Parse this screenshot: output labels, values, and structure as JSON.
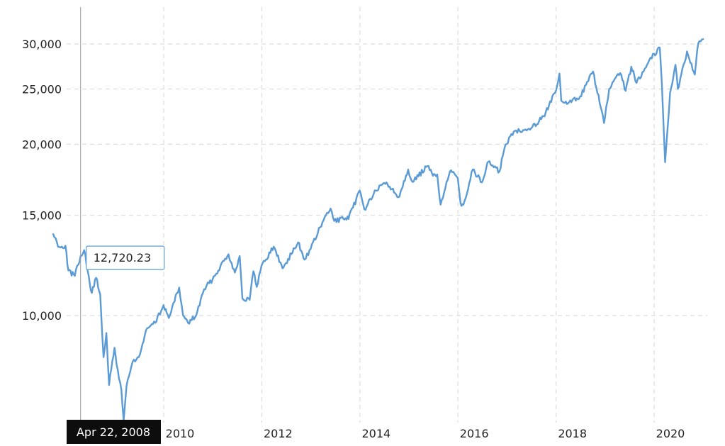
{
  "chart_data": {
    "type": "line",
    "title": "",
    "xlabel": "",
    "ylabel": "",
    "y_scale": "log",
    "ylim": [
      6500,
      32000
    ],
    "xlim": [
      "2007-10-01",
      "2020-12-31"
    ],
    "grid": true,
    "line_color": "#5b9bd5",
    "y_ticks": [
      {
        "value": 10000,
        "label": "10,000"
      },
      {
        "value": 15000,
        "label": "15,000"
      },
      {
        "value": 20000,
        "label": "20,000"
      },
      {
        "value": 25000,
        "label": "25,000"
      },
      {
        "value": 30000,
        "label": "30,000"
      }
    ],
    "x_ticks": [
      {
        "value": "2010-01-01",
        "label": "2010"
      },
      {
        "value": "2012-01-01",
        "label": "2012"
      },
      {
        "value": "2014-01-01",
        "label": "2014"
      },
      {
        "value": "2016-01-01",
        "label": "2016"
      },
      {
        "value": "2018-01-01",
        "label": "2018"
      },
      {
        "value": "2020-01-01",
        "label": "2020"
      }
    ],
    "series": [
      {
        "points": [
          [
            "2007-10-01",
            13900
          ],
          [
            "2007-11-15",
            13200
          ],
          [
            "2007-12-31",
            13260
          ],
          [
            "2008-01-22",
            12000
          ],
          [
            "2008-03-10",
            11740
          ],
          [
            "2008-04-22",
            12720
          ],
          [
            "2008-05-19",
            13030
          ],
          [
            "2008-06-30",
            11350
          ],
          [
            "2008-07-15",
            10960
          ],
          [
            "2008-08-15",
            11650
          ],
          [
            "2008-09-15",
            10900
          ],
          [
            "2008-10-10",
            8450
          ],
          [
            "2008-10-31",
            9320
          ],
          [
            "2008-11-20",
            7550
          ],
          [
            "2008-12-31",
            8780
          ],
          [
            "2009-01-15",
            8200
          ],
          [
            "2009-02-20",
            7400
          ],
          [
            "2009-03-09",
            6550
          ],
          [
            "2009-03-30",
            7520
          ],
          [
            "2009-05-15",
            8300
          ],
          [
            "2009-06-30",
            8450
          ],
          [
            "2009-08-31",
            9500
          ],
          [
            "2009-10-30",
            9710
          ],
          [
            "2009-12-31",
            10430
          ],
          [
            "2010-02-08",
            9900
          ],
          [
            "2010-04-26",
            11200
          ],
          [
            "2010-05-25",
            10000
          ],
          [
            "2010-07-02",
            9700
          ],
          [
            "2010-08-31",
            10010
          ],
          [
            "2010-10-29",
            11120
          ],
          [
            "2010-12-31",
            11580
          ],
          [
            "2011-02-28",
            12230
          ],
          [
            "2011-04-29",
            12810
          ],
          [
            "2011-06-15",
            11900
          ],
          [
            "2011-07-21",
            12720
          ],
          [
            "2011-08-10",
            10720
          ],
          [
            "2011-10-03",
            10660
          ],
          [
            "2011-10-31",
            11960
          ],
          [
            "2011-11-25",
            11230
          ],
          [
            "2011-12-30",
            12220
          ],
          [
            "2012-03-30",
            13210
          ],
          [
            "2012-06-04",
            12100
          ],
          [
            "2012-09-28",
            13440
          ],
          [
            "2012-11-15",
            12540
          ],
          [
            "2012-12-31",
            13100
          ],
          [
            "2013-03-28",
            14580
          ],
          [
            "2013-05-28",
            15410
          ],
          [
            "2013-06-24",
            14660
          ],
          [
            "2013-08-30",
            14810
          ],
          [
            "2013-10-08",
            14780
          ],
          [
            "2013-12-31",
            16580
          ],
          [
            "2014-02-03",
            15370
          ],
          [
            "2014-04-30",
            16580
          ],
          [
            "2014-07-17",
            17140
          ],
          [
            "2014-10-15",
            16140
          ],
          [
            "2014-12-26",
            18050
          ],
          [
            "2015-01-30",
            17160
          ],
          [
            "2015-05-19",
            18310
          ],
          [
            "2015-06-29",
            17600
          ],
          [
            "2015-07-31",
            17690
          ],
          [
            "2015-08-25",
            15660
          ],
          [
            "2015-11-03",
            17920
          ],
          [
            "2015-12-31",
            17420
          ],
          [
            "2016-01-20",
            15770
          ],
          [
            "2016-02-11",
            15660
          ],
          [
            "2016-04-20",
            18050
          ],
          [
            "2016-06-27",
            17140
          ],
          [
            "2016-08-15",
            18640
          ],
          [
            "2016-11-04",
            17890
          ],
          [
            "2016-12-20",
            19970
          ],
          [
            "2017-03-01",
            21120
          ],
          [
            "2017-06-30",
            21350
          ],
          [
            "2017-09-29",
            22400
          ],
          [
            "2017-12-29",
            24720
          ],
          [
            "2018-01-26",
            26620
          ],
          [
            "2018-02-08",
            23860
          ],
          [
            "2018-03-23",
            23530
          ],
          [
            "2018-06-29",
            24270
          ],
          [
            "2018-10-03",
            26830
          ],
          [
            "2018-12-24",
            21790
          ],
          [
            "2019-01-31",
            25000
          ],
          [
            "2019-04-23",
            26660
          ],
          [
            "2019-06-03",
            24820
          ],
          [
            "2019-07-15",
            27360
          ],
          [
            "2019-08-23",
            25630
          ],
          [
            "2019-11-27",
            28160
          ],
          [
            "2020-02-12",
            29550
          ],
          [
            "2020-02-28",
            25400
          ],
          [
            "2020-03-23",
            18590
          ],
          [
            "2020-04-29",
            24630
          ],
          [
            "2020-06-08",
            27570
          ],
          [
            "2020-06-26",
            25010
          ],
          [
            "2020-09-02",
            29100
          ],
          [
            "2020-10-30",
            26500
          ],
          [
            "2020-11-24",
            30050
          ],
          [
            "2020-12-31",
            30600
          ]
        ]
      }
    ],
    "crosshair": {
      "date": "2008-04-22",
      "value": 12720.23,
      "date_label": "Apr 22, 2008",
      "value_label": "12,720.23"
    }
  }
}
